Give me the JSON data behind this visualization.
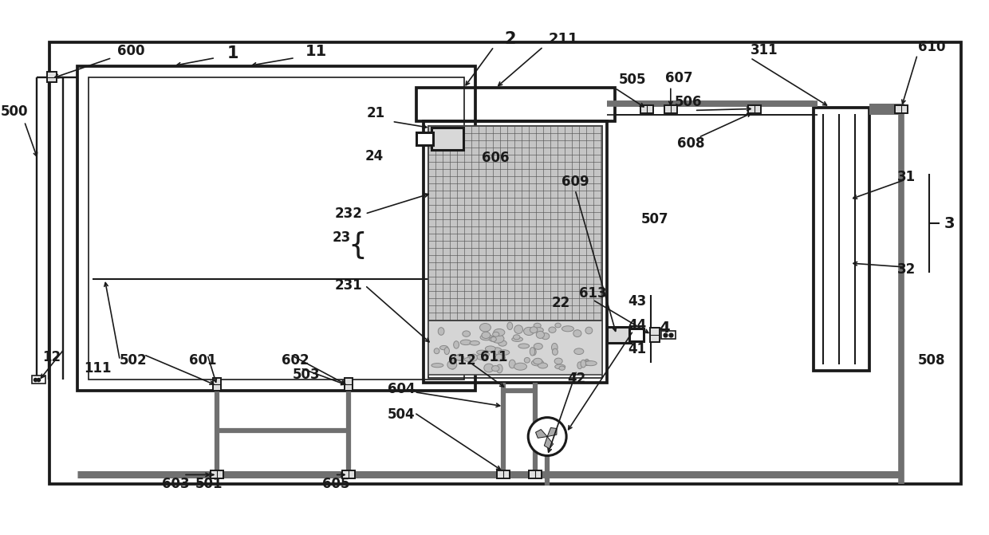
{
  "bg": "#ffffff",
  "lc": "#1a1a1a",
  "gc": "#aaaaaa",
  "figsize": [
    12.4,
    6.71
  ],
  "dpi": 100,
  "lw_main": 2.2,
  "lw_thin": 1.2,
  "lw_pipe": 4.5,
  "fs": 12
}
